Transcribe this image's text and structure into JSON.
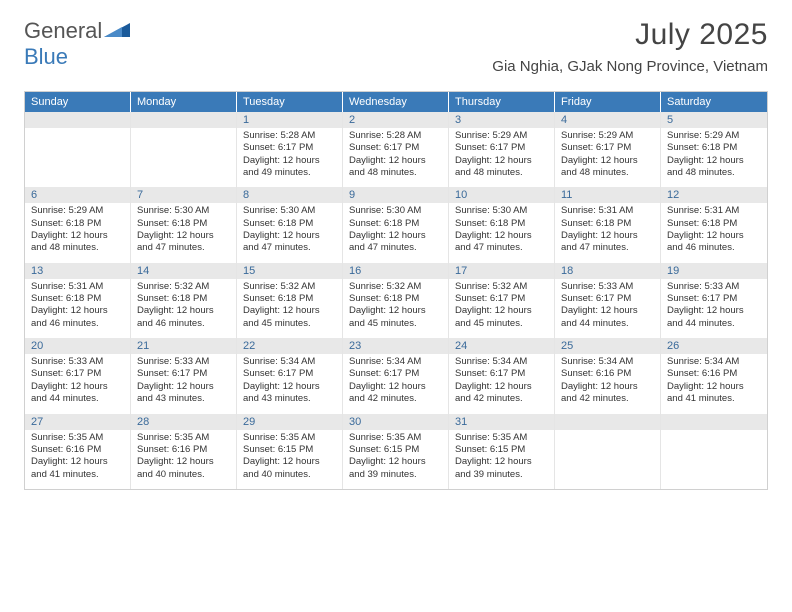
{
  "brand": {
    "general": "General",
    "blue": "Blue"
  },
  "title": "July 2025",
  "location": "Gia Nghia, GJak Nong Province, Vietnam",
  "colors": {
    "header_bg": "#3a7ab8",
    "header_text": "#ffffff",
    "daynum_bg": "#e8e8e8",
    "daynum_text": "#3a6a9a",
    "body_text": "#333333",
    "border": "#d0d0d0"
  },
  "day_names": [
    "Sunday",
    "Monday",
    "Tuesday",
    "Wednesday",
    "Thursday",
    "Friday",
    "Saturday"
  ],
  "weeks": [
    [
      {
        "n": "",
        "sr": "",
        "ss": "",
        "dl": ""
      },
      {
        "n": "",
        "sr": "",
        "ss": "",
        "dl": ""
      },
      {
        "n": "1",
        "sr": "5:28 AM",
        "ss": "6:17 PM",
        "dl": "12 hours and 49 minutes."
      },
      {
        "n": "2",
        "sr": "5:28 AM",
        "ss": "6:17 PM",
        "dl": "12 hours and 48 minutes."
      },
      {
        "n": "3",
        "sr": "5:29 AM",
        "ss": "6:17 PM",
        "dl": "12 hours and 48 minutes."
      },
      {
        "n": "4",
        "sr": "5:29 AM",
        "ss": "6:17 PM",
        "dl": "12 hours and 48 minutes."
      },
      {
        "n": "5",
        "sr": "5:29 AM",
        "ss": "6:18 PM",
        "dl": "12 hours and 48 minutes."
      }
    ],
    [
      {
        "n": "6",
        "sr": "5:29 AM",
        "ss": "6:18 PM",
        "dl": "12 hours and 48 minutes."
      },
      {
        "n": "7",
        "sr": "5:30 AM",
        "ss": "6:18 PM",
        "dl": "12 hours and 47 minutes."
      },
      {
        "n": "8",
        "sr": "5:30 AM",
        "ss": "6:18 PM",
        "dl": "12 hours and 47 minutes."
      },
      {
        "n": "9",
        "sr": "5:30 AM",
        "ss": "6:18 PM",
        "dl": "12 hours and 47 minutes."
      },
      {
        "n": "10",
        "sr": "5:30 AM",
        "ss": "6:18 PM",
        "dl": "12 hours and 47 minutes."
      },
      {
        "n": "11",
        "sr": "5:31 AM",
        "ss": "6:18 PM",
        "dl": "12 hours and 47 minutes."
      },
      {
        "n": "12",
        "sr": "5:31 AM",
        "ss": "6:18 PM",
        "dl": "12 hours and 46 minutes."
      }
    ],
    [
      {
        "n": "13",
        "sr": "5:31 AM",
        "ss": "6:18 PM",
        "dl": "12 hours and 46 minutes."
      },
      {
        "n": "14",
        "sr": "5:32 AM",
        "ss": "6:18 PM",
        "dl": "12 hours and 46 minutes."
      },
      {
        "n": "15",
        "sr": "5:32 AM",
        "ss": "6:18 PM",
        "dl": "12 hours and 45 minutes."
      },
      {
        "n": "16",
        "sr": "5:32 AM",
        "ss": "6:18 PM",
        "dl": "12 hours and 45 minutes."
      },
      {
        "n": "17",
        "sr": "5:32 AM",
        "ss": "6:17 PM",
        "dl": "12 hours and 45 minutes."
      },
      {
        "n": "18",
        "sr": "5:33 AM",
        "ss": "6:17 PM",
        "dl": "12 hours and 44 minutes."
      },
      {
        "n": "19",
        "sr": "5:33 AM",
        "ss": "6:17 PM",
        "dl": "12 hours and 44 minutes."
      }
    ],
    [
      {
        "n": "20",
        "sr": "5:33 AM",
        "ss": "6:17 PM",
        "dl": "12 hours and 44 minutes."
      },
      {
        "n": "21",
        "sr": "5:33 AM",
        "ss": "6:17 PM",
        "dl": "12 hours and 43 minutes."
      },
      {
        "n": "22",
        "sr": "5:34 AM",
        "ss": "6:17 PM",
        "dl": "12 hours and 43 minutes."
      },
      {
        "n": "23",
        "sr": "5:34 AM",
        "ss": "6:17 PM",
        "dl": "12 hours and 42 minutes."
      },
      {
        "n": "24",
        "sr": "5:34 AM",
        "ss": "6:17 PM",
        "dl": "12 hours and 42 minutes."
      },
      {
        "n": "25",
        "sr": "5:34 AM",
        "ss": "6:16 PM",
        "dl": "12 hours and 42 minutes."
      },
      {
        "n": "26",
        "sr": "5:34 AM",
        "ss": "6:16 PM",
        "dl": "12 hours and 41 minutes."
      }
    ],
    [
      {
        "n": "27",
        "sr": "5:35 AM",
        "ss": "6:16 PM",
        "dl": "12 hours and 41 minutes."
      },
      {
        "n": "28",
        "sr": "5:35 AM",
        "ss": "6:16 PM",
        "dl": "12 hours and 40 minutes."
      },
      {
        "n": "29",
        "sr": "5:35 AM",
        "ss": "6:15 PM",
        "dl": "12 hours and 40 minutes."
      },
      {
        "n": "30",
        "sr": "5:35 AM",
        "ss": "6:15 PM",
        "dl": "12 hours and 39 minutes."
      },
      {
        "n": "31",
        "sr": "5:35 AM",
        "ss": "6:15 PM",
        "dl": "12 hours and 39 minutes."
      },
      {
        "n": "",
        "sr": "",
        "ss": "",
        "dl": ""
      },
      {
        "n": "",
        "sr": "",
        "ss": "",
        "dl": ""
      }
    ]
  ],
  "labels": {
    "sunrise": "Sunrise:",
    "sunset": "Sunset:",
    "daylight": "Daylight:"
  }
}
